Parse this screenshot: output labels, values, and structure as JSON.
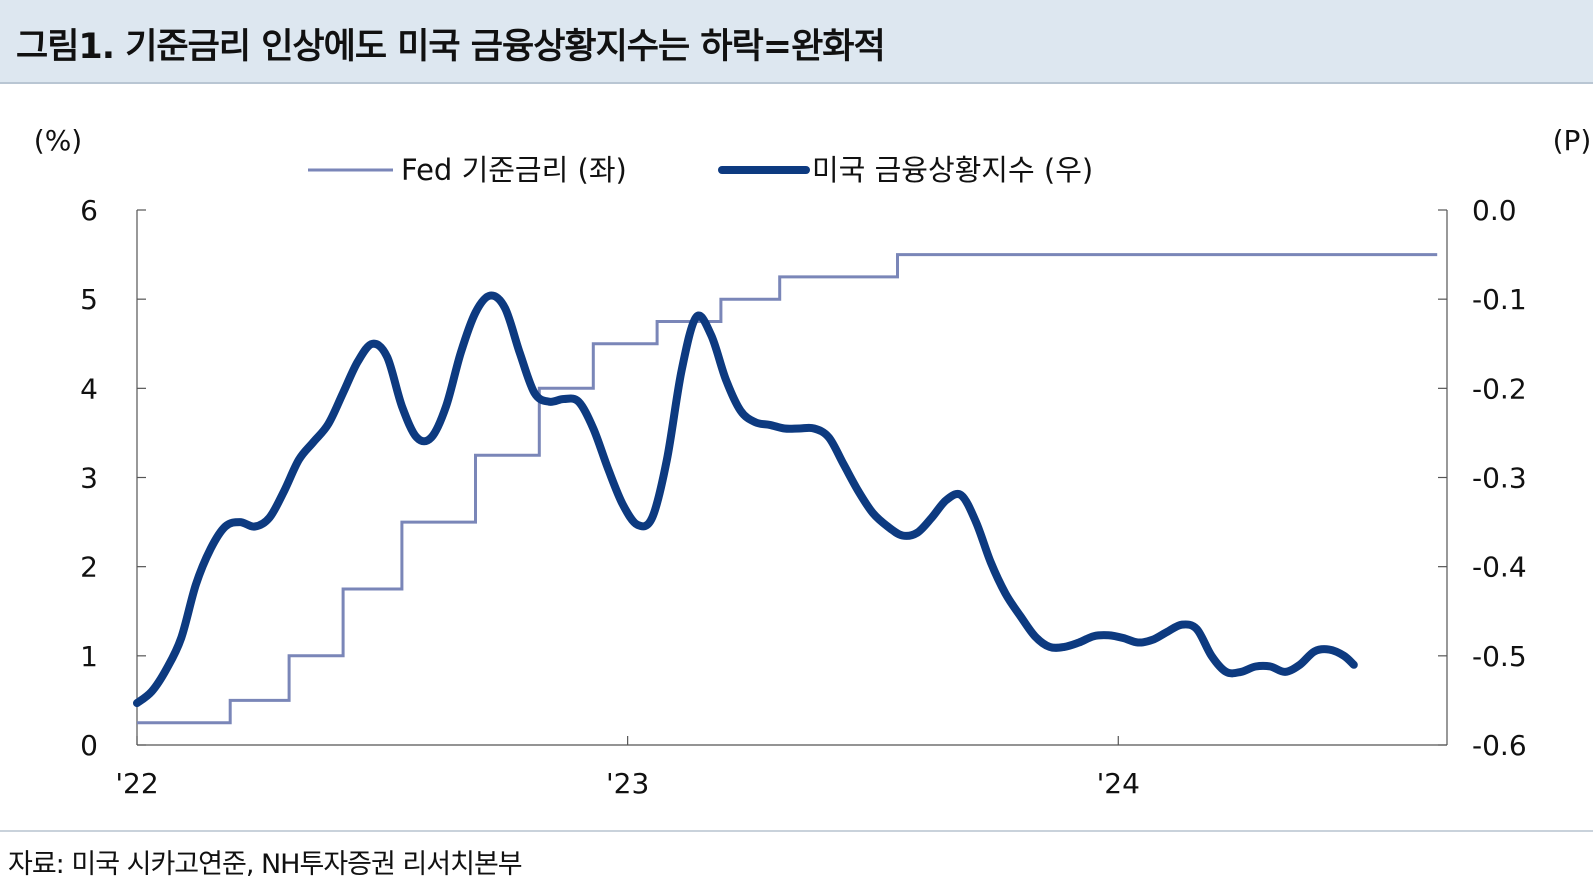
{
  "header": {
    "title": "그림1. 기준금리 인상에도 미국 금융상황지수는 하락=완화적"
  },
  "footer": {
    "source": "자료: 미국 시카고연준, NH투자증권 리서치본부"
  },
  "chart_data": {
    "type": "line",
    "left_axis": {
      "unit_label": "(%)",
      "min": 0,
      "max": 6,
      "ticks": [
        0,
        1,
        2,
        3,
        4,
        5,
        6
      ],
      "tick_labels": [
        "0",
        "1",
        "2",
        "3",
        "4",
        "5",
        "6"
      ]
    },
    "right_axis": {
      "unit_label": "(P)",
      "min": -0.6,
      "max": 0.0,
      "ticks": [
        -0.6,
        -0.5,
        -0.4,
        -0.3,
        -0.2,
        -0.1,
        0.0
      ],
      "tick_labels": [
        "-0.6",
        "-0.5",
        "-0.4",
        "-0.3",
        "-0.2",
        "-0.1",
        "0.0"
      ]
    },
    "x_axis": {
      "start": 2022.0,
      "end": 2024.67,
      "ticks": [
        2022,
        2023,
        2024
      ],
      "tick_labels": [
        "'22",
        "'23",
        "'24"
      ]
    },
    "legend": {
      "placement": "top-center",
      "entries": [
        "Fed 기준금리 (좌)",
        "미국 금융상황지수 (우)"
      ]
    },
    "series": [
      {
        "name": "Fed 기준금리 (좌)",
        "axis": "left",
        "color": "#7a86b8",
        "style": "step",
        "points": [
          [
            2022.0,
            0.25
          ],
          [
            2022.19,
            0.25
          ],
          [
            2022.19,
            0.5
          ],
          [
            2022.31,
            0.5
          ],
          [
            2022.31,
            1.0
          ],
          [
            2022.42,
            1.0
          ],
          [
            2022.42,
            1.75
          ],
          [
            2022.54,
            1.75
          ],
          [
            2022.54,
            2.5
          ],
          [
            2022.69,
            2.5
          ],
          [
            2022.69,
            3.25
          ],
          [
            2022.82,
            3.25
          ],
          [
            2022.82,
            4.0
          ],
          [
            2022.93,
            4.0
          ],
          [
            2022.93,
            4.5
          ],
          [
            2023.06,
            4.5
          ],
          [
            2023.06,
            4.75
          ],
          [
            2023.19,
            4.75
          ],
          [
            2023.19,
            5.0
          ],
          [
            2023.31,
            5.0
          ],
          [
            2023.31,
            5.25
          ],
          [
            2023.55,
            5.25
          ],
          [
            2023.55,
            5.5
          ],
          [
            2024.65,
            5.5
          ]
        ]
      },
      {
        "name": "미국 금융상황지수 (우)",
        "axis": "right",
        "color": "#0d3a80",
        "style": "line",
        "points": [
          [
            2022.0,
            -0.553
          ],
          [
            2022.03,
            -0.54
          ],
          [
            2022.06,
            -0.515
          ],
          [
            2022.09,
            -0.48
          ],
          [
            2022.12,
            -0.42
          ],
          [
            2022.15,
            -0.38
          ],
          [
            2022.18,
            -0.355
          ],
          [
            2022.21,
            -0.35
          ],
          [
            2022.24,
            -0.355
          ],
          [
            2022.27,
            -0.345
          ],
          [
            2022.3,
            -0.315
          ],
          [
            2022.33,
            -0.28
          ],
          [
            2022.36,
            -0.26
          ],
          [
            2022.39,
            -0.24
          ],
          [
            2022.42,
            -0.205
          ],
          [
            2022.45,
            -0.17
          ],
          [
            2022.48,
            -0.15
          ],
          [
            2022.51,
            -0.165
          ],
          [
            2022.54,
            -0.22
          ],
          [
            2022.57,
            -0.255
          ],
          [
            2022.6,
            -0.255
          ],
          [
            2022.63,
            -0.22
          ],
          [
            2022.66,
            -0.16
          ],
          [
            2022.69,
            -0.115
          ],
          [
            2022.72,
            -0.096
          ],
          [
            2022.75,
            -0.11
          ],
          [
            2022.78,
            -0.16
          ],
          [
            2022.81,
            -0.205
          ],
          [
            2022.84,
            -0.215
          ],
          [
            2022.87,
            -0.212
          ],
          [
            2022.9,
            -0.215
          ],
          [
            2022.93,
            -0.245
          ],
          [
            2022.96,
            -0.29
          ],
          [
            2022.99,
            -0.33
          ],
          [
            2023.02,
            -0.353
          ],
          [
            2023.05,
            -0.345
          ],
          [
            2023.08,
            -0.28
          ],
          [
            2023.11,
            -0.18
          ],
          [
            2023.14,
            -0.12
          ],
          [
            2023.17,
            -0.14
          ],
          [
            2023.2,
            -0.19
          ],
          [
            2023.23,
            -0.225
          ],
          [
            2023.26,
            -0.238
          ],
          [
            2023.29,
            -0.241
          ],
          [
            2023.32,
            -0.245
          ],
          [
            2023.35,
            -0.245
          ],
          [
            2023.38,
            -0.245
          ],
          [
            2023.41,
            -0.255
          ],
          [
            2023.44,
            -0.285
          ],
          [
            2023.47,
            -0.315
          ],
          [
            2023.5,
            -0.34
          ],
          [
            2023.53,
            -0.355
          ],
          [
            2023.56,
            -0.365
          ],
          [
            2023.59,
            -0.362
          ],
          [
            2023.62,
            -0.345
          ],
          [
            2023.65,
            -0.325
          ],
          [
            2023.68,
            -0.32
          ],
          [
            2023.71,
            -0.35
          ],
          [
            2023.74,
            -0.395
          ],
          [
            2023.77,
            -0.43
          ],
          [
            2023.8,
            -0.455
          ],
          [
            2023.83,
            -0.478
          ],
          [
            2023.86,
            -0.49
          ],
          [
            2023.89,
            -0.49
          ],
          [
            2023.92,
            -0.485
          ],
          [
            2023.95,
            -0.478
          ],
          [
            2023.98,
            -0.477
          ],
          [
            2024.01,
            -0.48
          ],
          [
            2024.04,
            -0.485
          ],
          [
            2024.07,
            -0.482
          ],
          [
            2024.1,
            -0.473
          ],
          [
            2024.13,
            -0.465
          ],
          [
            2024.16,
            -0.47
          ],
          [
            2024.19,
            -0.5
          ],
          [
            2024.22,
            -0.518
          ],
          [
            2024.25,
            -0.518
          ],
          [
            2024.28,
            -0.512
          ],
          [
            2024.31,
            -0.512
          ],
          [
            2024.34,
            -0.518
          ],
          [
            2024.37,
            -0.51
          ],
          [
            2024.4,
            -0.495
          ],
          [
            2024.43,
            -0.493
          ],
          [
            2024.46,
            -0.5
          ],
          [
            2024.48,
            -0.51
          ]
        ]
      }
    ]
  }
}
